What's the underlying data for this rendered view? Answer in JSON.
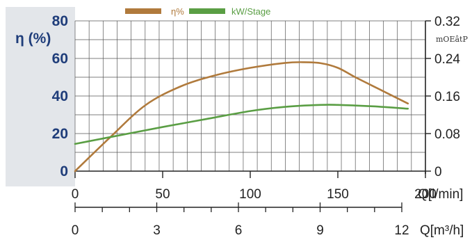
{
  "colors": {
    "efficiency": "#b07a3c",
    "power": "#5a9e44",
    "left_axis_text": "#1f3d7a",
    "left_panel_bg": "#e3e6ea",
    "grid": "#555555",
    "axis": "#222222"
  },
  "chart_data": {
    "type": "line",
    "legend": {
      "position": "top-center"
    },
    "grid": true,
    "series": [
      {
        "name": "η%",
        "axis": "left",
        "color": "#b07a3c",
        "points": [
          [
            0,
            0
          ],
          [
            20,
            18
          ],
          [
            40,
            35
          ],
          [
            60,
            45
          ],
          [
            80,
            51
          ],
          [
            100,
            55
          ],
          [
            120,
            57.6
          ],
          [
            130,
            58
          ],
          [
            140,
            57.5
          ],
          [
            150,
            55
          ],
          [
            160,
            50
          ],
          [
            175,
            43
          ],
          [
            190,
            36
          ]
        ]
      },
      {
        "name": "kW/Stage",
        "axis": "right",
        "color": "#5a9e44",
        "points": [
          [
            0,
            0.058
          ],
          [
            25,
            0.076
          ],
          [
            50,
            0.094
          ],
          [
            75,
            0.111
          ],
          [
            100,
            0.128
          ],
          [
            120,
            0.137
          ],
          [
            140,
            0.141
          ],
          [
            150,
            0.141
          ],
          [
            170,
            0.138
          ],
          [
            190,
            0.133
          ]
        ]
      }
    ],
    "x": {
      "label": "Q[l/min]",
      "range": [
        0,
        200
      ],
      "ticks": [
        "0",
        "50",
        "100",
        "150",
        "200"
      ]
    },
    "x2": {
      "label": "Q[m³/h]",
      "ticks": [
        "0",
        "3",
        "6",
        "9",
        "12"
      ]
    },
    "y_left": {
      "label": "η (%)",
      "range": [
        0,
        80
      ],
      "ticks": [
        "0",
        "20",
        "40",
        "60",
        "80"
      ]
    },
    "y_right": {
      "label": "mOEâtP",
      "range": [
        0,
        0.32
      ],
      "ticks": [
        "0",
        "0.08",
        "0.16",
        "0.24",
        "0.32"
      ]
    }
  }
}
